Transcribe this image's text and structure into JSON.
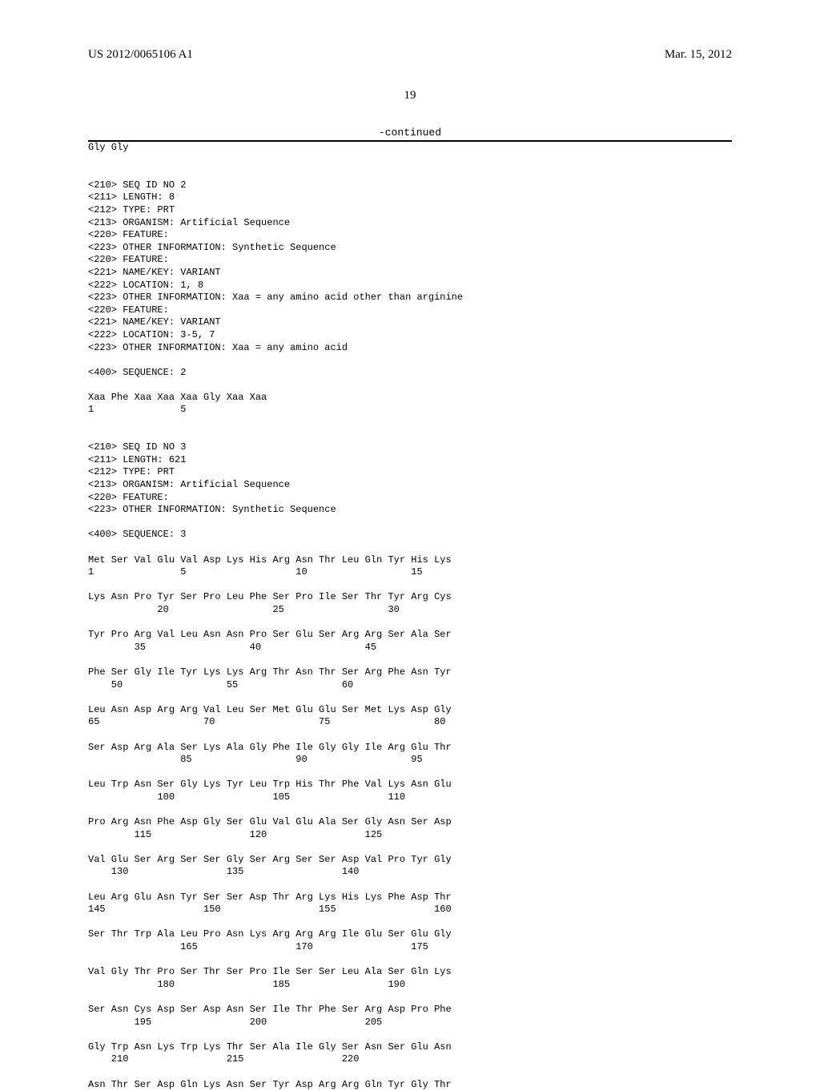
{
  "header": {
    "pubnum": "US 2012/0065106 A1",
    "pubdate": "Mar. 15, 2012",
    "pagenum": "19",
    "continued": "-continued"
  },
  "top_residue_line": "Gly Gly",
  "seq2": {
    "meta": [
      "<210> SEQ ID NO 2",
      "<211> LENGTH: 8",
      "<212> TYPE: PRT",
      "<213> ORGANISM: Artificial Sequence",
      "<220> FEATURE:",
      "<223> OTHER INFORMATION: Synthetic Sequence",
      "<220> FEATURE:",
      "<221> NAME/KEY: VARIANT",
      "<222> LOCATION: 1, 8",
      "<223> OTHER INFORMATION: Xaa = any amino acid other than arginine",
      "<220> FEATURE:",
      "<221> NAME/KEY: VARIANT",
      "<222> LOCATION: 3-5, 7",
      "<223> OTHER INFORMATION: Xaa = any amino acid"
    ],
    "seqlabel": "<400> SEQUENCE: 2",
    "residues": "Xaa Phe Xaa Xaa Xaa Gly Xaa Xaa",
    "posline": "1               5"
  },
  "seq3": {
    "meta": [
      "<210> SEQ ID NO 3",
      "<211> LENGTH: 621",
      "<212> TYPE: PRT",
      "<213> ORGANISM: Artificial Sequence",
      "<220> FEATURE:",
      "<223> OTHER INFORMATION: Synthetic Sequence"
    ],
    "seqlabel": "<400> SEQUENCE: 3",
    "blocks": [
      {
        "res": "Met Ser Val Glu Val Asp Lys His Arg Asn Thr Leu Gln Tyr His Lys",
        "pos": "1               5                   10                  15"
      },
      {
        "res": "Lys Asn Pro Tyr Ser Pro Leu Phe Ser Pro Ile Ser Thr Tyr Arg Cys",
        "pos": "            20                  25                  30"
      },
      {
        "res": "Tyr Pro Arg Val Leu Asn Asn Pro Ser Glu Ser Arg Arg Ser Ala Ser",
        "pos": "        35                  40                  45"
      },
      {
        "res": "Phe Ser Gly Ile Tyr Lys Lys Arg Thr Asn Thr Ser Arg Phe Asn Tyr",
        "pos": "    50                  55                  60"
      },
      {
        "res": "Leu Asn Asp Arg Arg Val Leu Ser Met Glu Glu Ser Met Lys Asp Gly",
        "pos": "65                  70                  75                  80"
      },
      {
        "res": "Ser Asp Arg Ala Ser Lys Ala Gly Phe Ile Gly Gly Ile Arg Glu Thr",
        "pos": "                85                  90                  95"
      },
      {
        "res": "Leu Trp Asn Ser Gly Lys Tyr Leu Trp His Thr Phe Val Lys Asn Glu",
        "pos": "            100                 105                 110"
      },
      {
        "res": "Pro Arg Asn Phe Asp Gly Ser Glu Val Glu Ala Ser Gly Asn Ser Asp",
        "pos": "        115                 120                 125"
      },
      {
        "res": "Val Glu Ser Arg Ser Ser Gly Ser Arg Ser Ser Asp Val Pro Tyr Gly",
        "pos": "    130                 135                 140"
      },
      {
        "res": "Leu Arg Glu Asn Tyr Ser Ser Asp Thr Arg Lys His Lys Phe Asp Thr",
        "pos": "145                 150                 155                 160"
      },
      {
        "res": "Ser Thr Trp Ala Leu Pro Asn Lys Arg Arg Arg Ile Glu Ser Glu Gly",
        "pos": "                165                 170                 175"
      },
      {
        "res": "Val Gly Thr Pro Ser Thr Ser Pro Ile Ser Ser Leu Ala Ser Gln Lys",
        "pos": "            180                 185                 190"
      },
      {
        "res": "Ser Asn Cys Asp Ser Asp Asn Ser Ile Thr Phe Ser Arg Asp Pro Phe",
        "pos": "        195                 200                 205"
      },
      {
        "res": "Gly Trp Asn Lys Trp Lys Thr Ser Ala Ile Gly Ser Asn Ser Glu Asn",
        "pos": "    210                 215                 220"
      },
      {
        "res": "Asn Thr Ser Asp Gln Lys Asn Ser Tyr Asp Arg Arg Gln Tyr Gly Thr",
        "pos": ""
      }
    ]
  }
}
